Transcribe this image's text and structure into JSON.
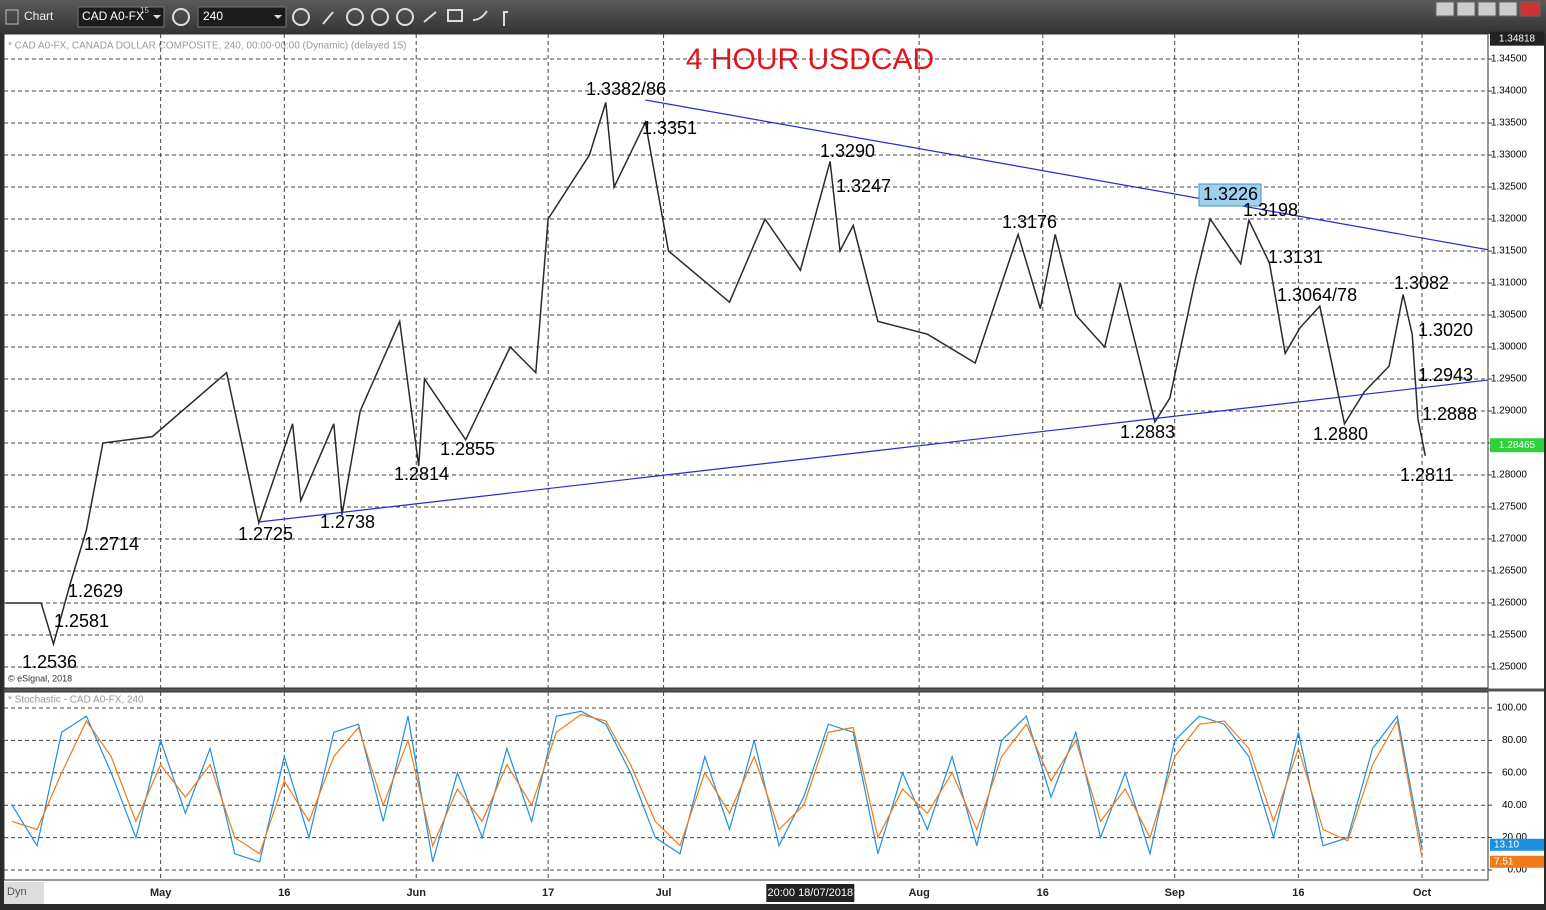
{
  "toolbar": {
    "title": "Chart",
    "symbol": "CAD A0-FX",
    "delay": "15",
    "interval": "240"
  },
  "bottom_label": "Dyn",
  "chart_data": [
    {
      "type": "line",
      "title": "4 HOUR USDCAD",
      "subtitle": "* CAD A0-FX, CANADA DOLLAR COMPOSITE, 240, 00:00-00:00 (Dynamic) (delayed 15)",
      "credit": "© eSignal, 2018",
      "color": "#2a2a2a",
      "x": [
        -18.8,
        -14.5,
        -13,
        -11,
        -9,
        -7,
        -1,
        8,
        11.9,
        16,
        17,
        21,
        22,
        24.2,
        29,
        31.3,
        32,
        37,
        42.4,
        45.5,
        47,
        52,
        54,
        55,
        58.8,
        61.6,
        69,
        73.3,
        77.6,
        81.2,
        82.4,
        84,
        87,
        93,
        98.8,
        104,
        106.7,
        108.5,
        111,
        114.5,
        116.4,
        120.6,
        122.4,
        125.4,
        127.3,
        131,
        132,
        134.5,
        136.4,
        138.2,
        140.6,
        143.6,
        146,
        149,
        150.7,
        151.8,
        152.5,
        153.4
      ],
      "values": [
        1.26,
        1.26,
        1.2536,
        1.2629,
        1.2714,
        1.285,
        1.286,
        1.296,
        1.2725,
        1.288,
        1.276,
        1.288,
        1.2738,
        1.29,
        1.304,
        1.2814,
        1.295,
        1.2855,
        1.3,
        1.296,
        1.32,
        1.33,
        1.3382,
        1.325,
        1.3351,
        1.315,
        1.307,
        1.32,
        1.312,
        1.329,
        1.315,
        1.319,
        1.304,
        1.302,
        1.2975,
        1.3176,
        1.306,
        1.3176,
        1.305,
        1.3,
        1.31,
        1.2883,
        1.292,
        1.31,
        1.32,
        1.313,
        1.3198,
        1.3131,
        1.299,
        1.303,
        1.3064,
        1.288,
        1.293,
        1.297,
        1.3082,
        1.302,
        1.2888,
        1.283
      ],
      "xlim": [
        -19,
        161
      ],
      "ylim": [
        1.24672,
        1.34891
      ],
      "yticks": [
        {
          "value": 1.25,
          "label": "1.25000"
        },
        {
          "value": 1.255,
          "label": "1.25500"
        },
        {
          "value": 1.26,
          "label": "1.26000"
        },
        {
          "value": 1.265,
          "label": "1.26500"
        },
        {
          "value": 1.27,
          "label": "1.27000"
        },
        {
          "value": 1.275,
          "label": "1.27500"
        },
        {
          "value": 1.28,
          "label": "1.28000"
        },
        {
          "value": 1.285,
          "label": "1.28500"
        },
        {
          "value": 1.29,
          "label": "1.29000"
        },
        {
          "value": 1.295,
          "label": "1.29500"
        },
        {
          "value": 1.3,
          "label": "1.30000"
        },
        {
          "value": 1.305,
          "label": "1.30500"
        },
        {
          "value": 1.31,
          "label": "1.31000"
        },
        {
          "value": 1.315,
          "label": "1.31500"
        },
        {
          "value": 1.32,
          "label": "1.32000"
        },
        {
          "value": 1.325,
          "label": "1.32500"
        },
        {
          "value": 1.33,
          "label": "1.33000"
        },
        {
          "value": 1.335,
          "label": "1.33500"
        },
        {
          "value": 1.34,
          "label": "1.34000"
        },
        {
          "value": 1.345,
          "label": "1.34500"
        }
      ],
      "grid": true,
      "last_price": {
        "value": 1.28465,
        "label": "1.28465"
      },
      "high_marker": {
        "value": 1.34818,
        "label": "1.34818"
      },
      "trendlines": [
        {
          "color": "#2a2ad0",
          "x": [
            58.8,
            161
          ],
          "y": [
            1.3386,
            1.3152
          ]
        },
        {
          "color": "#2a2ad0",
          "x": [
            11.9,
            161
          ],
          "y": [
            1.27266,
            1.29484
          ]
        }
      ],
      "annotations": [
        "1.3382/86",
        "1.3351",
        "1.3290",
        "1.3247",
        "1.3176",
        "1.3226",
        "1.3198",
        "1.3131",
        "1.3064/78",
        "1.3082",
        "1.3020",
        "1.2943",
        "1.2888",
        "1.2880",
        "1.2811",
        "1.2883",
        "1.2855",
        "1.2814",
        "1.2725",
        "1.2738",
        "1.2714",
        "1.2629",
        "1.2581",
        "1.2536"
      ]
    },
    {
      "type": "line",
      "title": "* Stochastic - CAD A0-FX, 240",
      "x": [
        -18,
        -15,
        -12,
        -9,
        -6,
        -3,
        0,
        3,
        6,
        9,
        12,
        15,
        18,
        21,
        24,
        27,
        30,
        33,
        36,
        39,
        42,
        45,
        48,
        51,
        54,
        57,
        60,
        63,
        66,
        69,
        72,
        75,
        78,
        81,
        84,
        87,
        90,
        93,
        96,
        99,
        102,
        105,
        108,
        111,
        114,
        117,
        120,
        123,
        126,
        129,
        132,
        135,
        138,
        141,
        144,
        147,
        150,
        153
      ],
      "series": [
        {
          "color": "#1f8fe0",
          "values": [
            40,
            15,
            85,
            95,
            60,
            20,
            80,
            35,
            75,
            10,
            5,
            70,
            20,
            85,
            90,
            30,
            95,
            5,
            60,
            20,
            75,
            30,
            95,
            98,
            90,
            60,
            20,
            10,
            70,
            25,
            80,
            15,
            45,
            90,
            85,
            10,
            60,
            25,
            70,
            15,
            80,
            95,
            45,
            85,
            20,
            60,
            10,
            80,
            95,
            90,
            70,
            20,
            85,
            15,
            20,
            75,
            95,
            13.1
          ],
          "last_label": "13.10"
        },
        {
          "color": "#f07a1a",
          "values": [
            30,
            25,
            60,
            92,
            70,
            30,
            65,
            45,
            65,
            20,
            10,
            55,
            30,
            70,
            88,
            40,
            80,
            15,
            50,
            30,
            65,
            40,
            85,
            96,
            92,
            65,
            30,
            15,
            60,
            35,
            70,
            25,
            40,
            85,
            88,
            20,
            50,
            35,
            60,
            25,
            70,
            90,
            55,
            80,
            30,
            50,
            20,
            70,
            90,
            92,
            75,
            30,
            75,
            25,
            18,
            65,
            92,
            7.51
          ],
          "last_label": "7.51"
        }
      ],
      "xlim": [
        -19,
        161
      ],
      "ylim": [
        -6.2,
        109.9
      ],
      "yticks": [
        {
          "value": 0,
          "label": "0.00"
        },
        {
          "value": 20,
          "label": "20.00"
        },
        {
          "value": 40,
          "label": "40.00"
        },
        {
          "value": 60,
          "label": "60.00"
        },
        {
          "value": 80,
          "label": "80.00"
        },
        {
          "value": 100,
          "label": "100.00"
        }
      ],
      "xticks": [
        {
          "value": 0,
          "label": "May"
        },
        {
          "value": 15,
          "label": "16"
        },
        {
          "value": 31,
          "label": "Jun"
        },
        {
          "value": 47,
          "label": "17"
        },
        {
          "value": 61,
          "label": "Jul"
        },
        {
          "value": 92,
          "label": "Aug"
        },
        {
          "value": 107,
          "label": "16"
        },
        {
          "value": 123,
          "label": "Sep"
        },
        {
          "value": 138,
          "label": "16"
        },
        {
          "value": 153,
          "label": "Oct"
        }
      ],
      "crosshair": {
        "value": 78.8,
        "label": "20:00 18/07/2018"
      },
      "grid": true
    }
  ]
}
